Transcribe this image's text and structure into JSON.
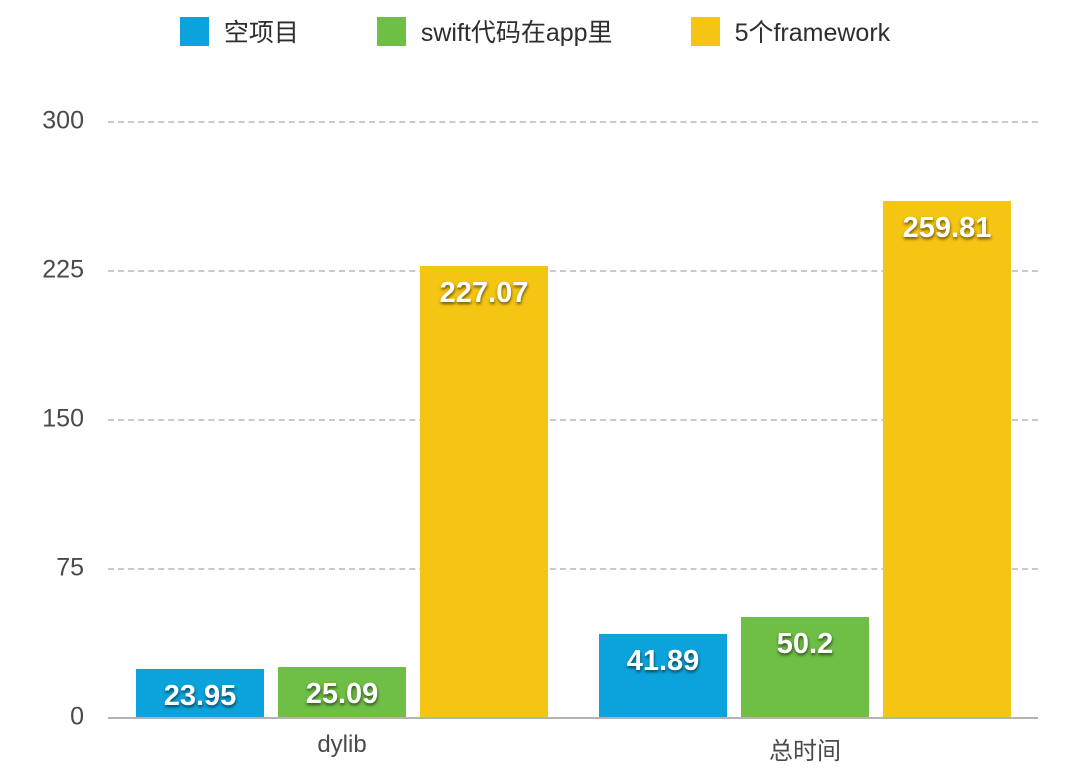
{
  "chart_data": {
    "type": "bar",
    "title": "",
    "xlabel": "",
    "ylabel": "",
    "categories": [
      "dylib",
      "总时间"
    ],
    "series": [
      {
        "name": "空项目",
        "color": "#0ca3dc",
        "values": [
          23.95,
          41.89
        ]
      },
      {
        "name": "swift代码在app里",
        "color": "#6fbe45",
        "values": [
          25.09,
          50.2
        ]
      },
      {
        "name": "5个framework",
        "color": "#f5c513",
        "values": [
          227.07,
          259.81
        ]
      }
    ],
    "value_labels": [
      [
        "23.95",
        "41.89"
      ],
      [
        "25.09",
        "50.2"
      ],
      [
        "227.07",
        "259.81"
      ]
    ],
    "yticks": [
      "0",
      "75",
      "150",
      "225",
      "300"
    ],
    "ylim": [
      0,
      300
    ],
    "grid": "horizontal-dashed",
    "legend_position": "top",
    "value_labels_shown": true
  },
  "styles": {
    "background": "#ffffff",
    "axis_text_color": "#4a4a4a",
    "legend_text_color": "#2e2e2e",
    "gridline_color": "#c9c9c9",
    "baseline_color": "#b3b3b3",
    "value_label_color": "#ffffff"
  }
}
